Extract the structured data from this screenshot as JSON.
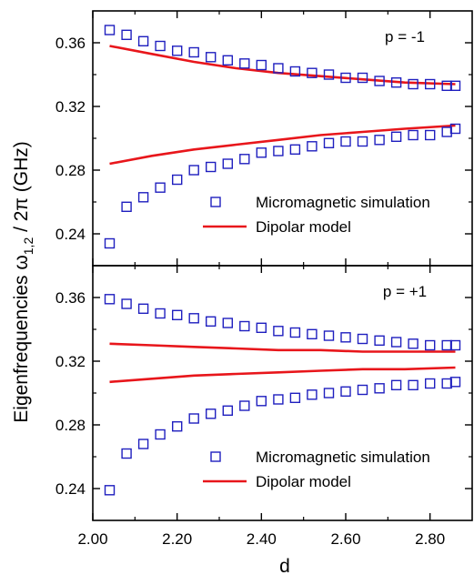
{
  "chart_data": {
    "type": "scatter",
    "xlabel": "d",
    "ylabel": "Eigenfrequencies ω1,2 / 2π (GHz)",
    "ylabel_parts": {
      "prefix": "Eigenfrequencies ω",
      "subscript": "1,2",
      "suffix": " / 2π (GHz)"
    },
    "xlim": [
      2.0,
      2.9
    ],
    "xticks": [
      "2.00",
      "2.20",
      "2.40",
      "2.60",
      "2.80"
    ],
    "xtick_values": [
      2.0,
      2.2,
      2.4,
      2.6,
      2.8
    ],
    "colors": {
      "simulation": "#1f1fbf",
      "model": "#e8161b",
      "axes": "#000000"
    },
    "panels": [
      {
        "label": "p = -1",
        "ylim": [
          0.22,
          0.38
        ],
        "yticks": [
          "0.24",
          "0.28",
          "0.32",
          "0.36"
        ],
        "ytick_values": [
          0.24,
          0.28,
          0.32,
          0.36
        ],
        "legend": {
          "position": "bottom-right",
          "entries": [
            "Micromagnetic simulation",
            "Dipolar model"
          ]
        },
        "simulation_upper": {
          "x": [
            2.04,
            2.08,
            2.12,
            2.16,
            2.2,
            2.24,
            2.28,
            2.32,
            2.36,
            2.4,
            2.44,
            2.48,
            2.52,
            2.56,
            2.6,
            2.64,
            2.68,
            2.72,
            2.76,
            2.8,
            2.84,
            2.86
          ],
          "y": [
            0.368,
            0.365,
            0.361,
            0.358,
            0.355,
            0.354,
            0.351,
            0.349,
            0.347,
            0.346,
            0.344,
            0.342,
            0.341,
            0.34,
            0.338,
            0.338,
            0.336,
            0.335,
            0.334,
            0.334,
            0.333,
            0.333
          ]
        },
        "simulation_lower": {
          "x": [
            2.04,
            2.08,
            2.12,
            2.16,
            2.2,
            2.24,
            2.28,
            2.32,
            2.36,
            2.4,
            2.44,
            2.48,
            2.52,
            2.56,
            2.6,
            2.64,
            2.68,
            2.72,
            2.76,
            2.8,
            2.84,
            2.86
          ],
          "y": [
            0.234,
            0.257,
            0.263,
            0.269,
            0.274,
            0.28,
            0.282,
            0.284,
            0.287,
            0.291,
            0.292,
            0.293,
            0.295,
            0.297,
            0.298,
            0.298,
            0.299,
            0.301,
            0.302,
            0.302,
            0.304,
            0.306
          ]
        },
        "model_upper": {
          "x": [
            2.04,
            2.14,
            2.24,
            2.34,
            2.44,
            2.54,
            2.64,
            2.74,
            2.86
          ],
          "y": [
            0.358,
            0.353,
            0.348,
            0.344,
            0.341,
            0.339,
            0.337,
            0.335,
            0.334
          ]
        },
        "model_lower": {
          "x": [
            2.04,
            2.14,
            2.24,
            2.34,
            2.44,
            2.54,
            2.64,
            2.74,
            2.86
          ],
          "y": [
            0.284,
            0.289,
            0.293,
            0.296,
            0.299,
            0.302,
            0.304,
            0.306,
            0.308
          ]
        }
      },
      {
        "label": "p = +1",
        "ylim": [
          0.22,
          0.38
        ],
        "yticks": [
          "0.24",
          "0.28",
          "0.32",
          "0.36"
        ],
        "ytick_values": [
          0.24,
          0.28,
          0.32,
          0.36
        ],
        "legend": {
          "position": "bottom-right",
          "entries": [
            "Micromagnetic simulation",
            "Dipolar model"
          ]
        },
        "simulation_upper": {
          "x": [
            2.04,
            2.08,
            2.12,
            2.16,
            2.2,
            2.24,
            2.28,
            2.32,
            2.36,
            2.4,
            2.44,
            2.48,
            2.52,
            2.56,
            2.6,
            2.64,
            2.68,
            2.72,
            2.76,
            2.8,
            2.84,
            2.86
          ],
          "y": [
            0.359,
            0.356,
            0.353,
            0.35,
            0.349,
            0.347,
            0.345,
            0.344,
            0.342,
            0.341,
            0.339,
            0.338,
            0.337,
            0.336,
            0.335,
            0.334,
            0.333,
            0.332,
            0.331,
            0.33,
            0.33,
            0.33
          ]
        },
        "simulation_lower": {
          "x": [
            2.04,
            2.08,
            2.12,
            2.16,
            2.2,
            2.24,
            2.28,
            2.32,
            2.36,
            2.4,
            2.44,
            2.48,
            2.52,
            2.56,
            2.6,
            2.64,
            2.68,
            2.72,
            2.76,
            2.8,
            2.84,
            2.86
          ],
          "y": [
            0.239,
            0.262,
            0.268,
            0.274,
            0.279,
            0.284,
            0.287,
            0.289,
            0.292,
            0.295,
            0.296,
            0.297,
            0.299,
            0.3,
            0.301,
            0.302,
            0.303,
            0.305,
            0.305,
            0.306,
            0.306,
            0.307
          ]
        },
        "model_upper": {
          "x": [
            2.04,
            2.14,
            2.24,
            2.34,
            2.44,
            2.54,
            2.64,
            2.74,
            2.86
          ],
          "y": [
            0.331,
            0.33,
            0.329,
            0.328,
            0.327,
            0.327,
            0.326,
            0.326,
            0.326
          ]
        },
        "model_lower": {
          "x": [
            2.04,
            2.14,
            2.24,
            2.34,
            2.44,
            2.54,
            2.64,
            2.74,
            2.86
          ],
          "y": [
            0.307,
            0.309,
            0.311,
            0.312,
            0.313,
            0.314,
            0.315,
            0.315,
            0.316
          ]
        }
      }
    ]
  }
}
